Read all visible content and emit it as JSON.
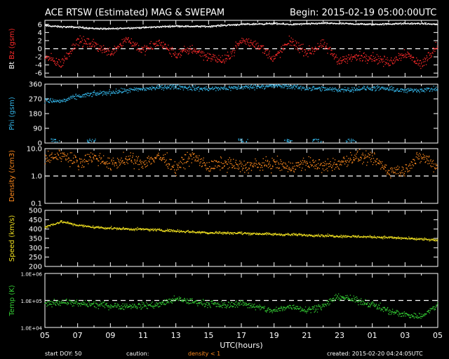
{
  "header": {
    "title": "ACE RTSW (Estimated) MAG & SWEPAM",
    "begin": "Begin: 2015-02-19 05:00:00UTC"
  },
  "footer": {
    "start_doy": "start DOY:  50",
    "caution_label": "caution:",
    "caution_text": "density < 1",
    "created": "created: 2015-02-20 04:24:05UTC"
  },
  "colors": {
    "background": "#000000",
    "axes": "#ffffff",
    "bt": "#ffffff",
    "bz": "#ff2a2a",
    "phi": "#33b3e6",
    "density": "#ff8a1e",
    "speed": "#f0e020",
    "temp": "#33cc33"
  },
  "chart_data": {
    "type": "scatter",
    "x_axis": {
      "label": "UTC(hours)",
      "ticks": [
        "05",
        "07",
        "09",
        "11",
        "13",
        "15",
        "17",
        "19",
        "21",
        "23",
        "01",
        "03",
        "05"
      ],
      "range_hours": [
        0,
        24
      ]
    },
    "panels": [
      {
        "id": "mag",
        "ylabel_parts": [
          {
            "text": "Bt",
            "color": "#ffffff"
          },
          {
            "text": "Bz",
            "color": "#ff2a2a"
          },
          {
            "text": "(gsm)",
            "color": "#ff2a2a"
          }
        ],
        "scale": "linear",
        "ylim": [
          -7,
          7
        ],
        "yticks": [
          "-6",
          "-4",
          "-2",
          "0",
          "2",
          "4",
          "6"
        ],
        "yticks_values": [
          -6,
          -4,
          -2,
          0,
          2,
          4,
          6
        ],
        "dashed_ref": 0,
        "series": [
          {
            "name": "Bt",
            "color": "#ffffff",
            "x": [
              0,
              1,
              2,
              3,
              4,
              5,
              6,
              7,
              8,
              9,
              10,
              11,
              12,
              13,
              14,
              15,
              16,
              17,
              18,
              19,
              20,
              21,
              22,
              23,
              24
            ],
            "y": [
              5.7,
              5.4,
              5.3,
              5.0,
              4.9,
              5.1,
              5.2,
              5.4,
              5.6,
              5.5,
              5.5,
              5.8,
              6.0,
              6.1,
              6.2,
              6.0,
              6.1,
              6.3,
              6.2,
              6.1,
              6.0,
              6.1,
              6.2,
              6.2,
              6.0
            ],
            "jitter": 0.3
          },
          {
            "name": "Bz",
            "color": "#ff2a2a",
            "x": [
              0,
              1,
              2,
              3,
              4,
              5,
              6,
              7,
              8,
              9,
              10,
              11,
              12,
              13,
              14,
              15,
              16,
              17,
              18,
              19,
              20,
              21,
              22,
              23,
              24
            ],
            "y": [
              -2,
              -3.8,
              2,
              1,
              -1,
              2.5,
              -0.5,
              1.5,
              -1.5,
              0,
              -2,
              -3,
              2,
              1,
              -2.5,
              2,
              -1,
              1,
              -3,
              -2,
              -2,
              -3.5,
              -1,
              -4,
              1
            ],
            "jitter": 1.8
          }
        ]
      },
      {
        "id": "phi",
        "ylabel_parts": [
          {
            "text": "Phi",
            "color": "#33b3e6"
          },
          {
            "text": "(gsm)",
            "color": "#33b3e6"
          }
        ],
        "scale": "linear",
        "ylim": [
          0,
          360
        ],
        "yticks": [
          "0",
          "90",
          "180",
          "270",
          "360"
        ],
        "yticks_values": [
          0,
          90,
          180,
          270,
          360
        ],
        "series": [
          {
            "name": "Phi",
            "color": "#33b3e6",
            "x": [
              0,
              1,
              2,
              3,
              4,
              5,
              6,
              7,
              8,
              9,
              10,
              11,
              12,
              13,
              14,
              15,
              16,
              17,
              18,
              19,
              20,
              21,
              22,
              23,
              24
            ],
            "y": [
              260,
              255,
              285,
              300,
              310,
              320,
              330,
              340,
              345,
              335,
              330,
              335,
              340,
              345,
              350,
              345,
              335,
              330,
              325,
              330,
              335,
              330,
              320,
              325,
              330
            ],
            "jitter": 22,
            "near_zero_hours": [
              0.3,
              2.5,
              11.8,
              14.5,
              16.3,
              18.4
            ]
          }
        ]
      },
      {
        "id": "density",
        "ylabel_parts": [
          {
            "text": "Density",
            "color": "#ff8a1e"
          },
          {
            "text": "(/cm3)",
            "color": "#ff8a1e"
          }
        ],
        "scale": "log",
        "ylim": [
          0.1,
          10
        ],
        "yticks": [
          "0.1",
          "1.0",
          "10.0"
        ],
        "yticks_values": [
          0.1,
          1,
          10
        ],
        "dashed_ref": 1,
        "series": [
          {
            "name": "Density",
            "color": "#ff8a1e",
            "x": [
              0,
              1,
              2,
              3,
              4,
              5,
              6,
              7,
              8,
              9,
              10,
              11,
              12,
              13,
              14,
              15,
              16,
              17,
              18,
              19,
              20,
              21,
              22,
              23,
              24
            ],
            "y": [
              4,
              6,
              3,
              5,
              2.5,
              4,
              3,
              5,
              1.8,
              5,
              2,
              3,
              2.2,
              2.5,
              2.8,
              2,
              3,
              2.2,
              2.8,
              5,
              4,
              1.5,
              1.6,
              5,
              2
            ],
            "jitter": 0.35
          }
        ]
      },
      {
        "id": "speed",
        "ylabel_parts": [
          {
            "text": "Speed",
            "color": "#f0e020"
          },
          {
            "text": "(km/s)",
            "color": "#f0e020"
          }
        ],
        "scale": "linear",
        "ylim": [
          200,
          500
        ],
        "yticks": [
          "200",
          "250",
          "300",
          "350",
          "400",
          "450",
          "500"
        ],
        "yticks_values": [
          200,
          250,
          300,
          350,
          400,
          450,
          500
        ],
        "series": [
          {
            "name": "Speed",
            "color": "#f0e020",
            "x": [
              0,
              1,
              2,
              3,
              4,
              5,
              6,
              7,
              8,
              9,
              10,
              11,
              12,
              13,
              14,
              15,
              16,
              17,
              18,
              19,
              20,
              21,
              22,
              23,
              24
            ],
            "y": [
              410,
              440,
              420,
              410,
              405,
              400,
              398,
              395,
              390,
              385,
              380,
              380,
              378,
              375,
              372,
              370,
              368,
              365,
              362,
              360,
              358,
              355,
              350,
              345,
              340
            ],
            "jitter": 10
          }
        ]
      },
      {
        "id": "temp",
        "ylabel_parts": [
          {
            "text": "Temp",
            "color": "#33cc33"
          },
          {
            "text": "(K)",
            "color": "#33cc33"
          }
        ],
        "scale": "log",
        "ylim": [
          10000,
          1000000
        ],
        "yticks": [
          "1.0E+04",
          "1.0E+05",
          "1.0E+06"
        ],
        "yticks_values": [
          10000,
          100000,
          1000000
        ],
        "dashed_ref": 100000,
        "series": [
          {
            "name": "Temp",
            "color": "#33cc33",
            "x": [
              0,
              1,
              2,
              3,
              4,
              5,
              6,
              7,
              8,
              9,
              10,
              11,
              12,
              13,
              14,
              15,
              16,
              17,
              18,
              19,
              20,
              21,
              22,
              23,
              24
            ],
            "y": [
              70000,
              90000,
              75000,
              70000,
              65000,
              60000,
              65000,
              70000,
              110000,
              90000,
              75000,
              65000,
              80000,
              55000,
              40000,
              60000,
              45000,
              60000,
              140000,
              100000,
              70000,
              40000,
              30000,
              25000,
              60000
            ],
            "jitter": 0.18
          }
        ]
      }
    ]
  }
}
